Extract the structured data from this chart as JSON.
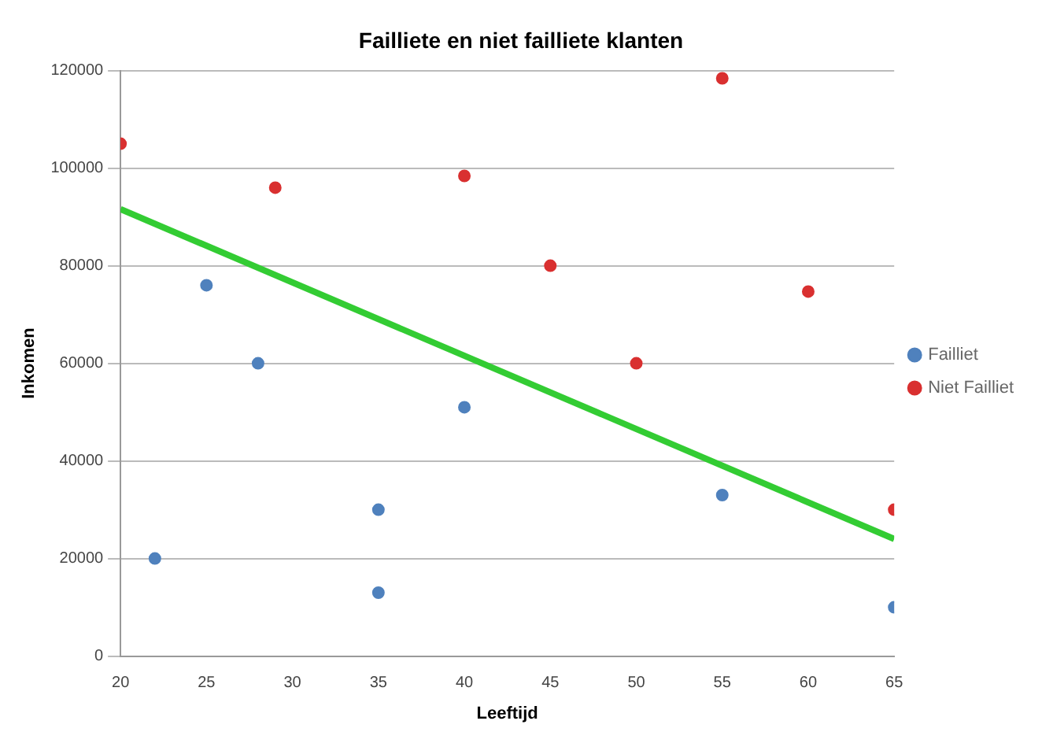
{
  "chart_data": {
    "type": "scatter",
    "title": "Failliete en niet failliete klanten",
    "xlabel": "Leeftijd",
    "ylabel": "Inkomen",
    "xlim": [
      20,
      65
    ],
    "xticks": [
      20,
      25,
      30,
      35,
      40,
      45,
      50,
      55,
      60,
      65
    ],
    "ylim": [
      0,
      120000
    ],
    "yticks": [
      0,
      20000,
      40000,
      60000,
      80000,
      100000,
      120000
    ],
    "grid": "y",
    "legend": "right",
    "marker": "circle",
    "series": [
      {
        "name": "Failliet",
        "color": "#4f81bd",
        "x": [
          22,
          25,
          28,
          35,
          35,
          40,
          55,
          65
        ],
        "values": [
          20000,
          76000,
          60000,
          30000,
          13000,
          51000,
          33000,
          10000
        ]
      },
      {
        "name": "Niet Failliet",
        "color": "#d93030",
        "x": [
          20,
          29,
          40,
          45,
          50,
          55,
          60,
          65
        ],
        "values": [
          105000,
          96000,
          98400,
          80000,
          60000,
          118400,
          74700,
          30000
        ]
      },
      {
        "type": "line",
        "color": "#33cc33",
        "marker": "none",
        "x": [
          20,
          65
        ],
        "values": [
          91600,
          24000
        ]
      }
    ]
  }
}
